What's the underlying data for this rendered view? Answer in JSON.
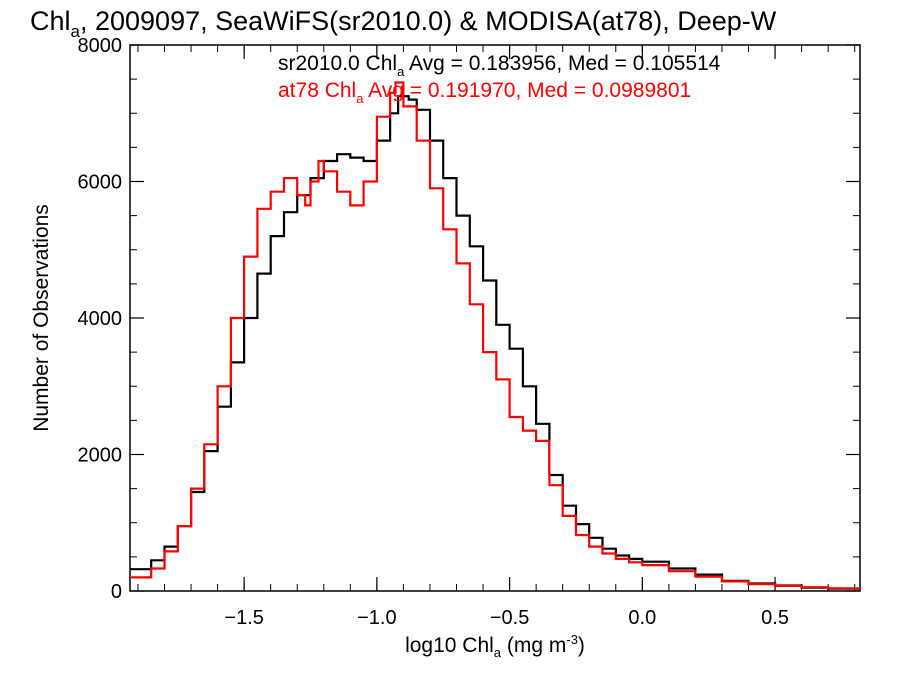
{
  "chart_data": {
    "type": "line",
    "title_parts": {
      "pre": "Chl",
      "sub": "a",
      "post": ", 2009097, SeaWiFS(sr2010.0) & MODISA(at78), Deep-W"
    },
    "xlabel_parts": {
      "pre": "log10 Chl",
      "sub": "a",
      "mid": " (mg m",
      "sup": "-3",
      "post": ")"
    },
    "ylabel": "Number of Observations",
    "xlim": [
      -1.93,
      0.82
    ],
    "ylim": [
      0,
      8000
    ],
    "xticks": [
      {
        "v": -1.5,
        "label": "−1.5"
      },
      {
        "v": -1.0,
        "label": "−1.0"
      },
      {
        "v": -0.5,
        "label": "−0.5"
      },
      {
        "v": 0.0,
        "label": "0.0"
      },
      {
        "v": 0.5,
        "label": "0.5"
      }
    ],
    "yticks": [
      {
        "v": 0,
        "label": "0"
      },
      {
        "v": 2000,
        "label": "2000"
      },
      {
        "v": 4000,
        "label": "4000"
      },
      {
        "v": 6000,
        "label": "6000"
      },
      {
        "v": 8000,
        "label": "8000"
      }
    ],
    "x_minor_step": 0.1,
    "y_minor_step": 500,
    "grid": false,
    "series": [
      {
        "name": "sr2010.0",
        "color": "#000000",
        "stat": {
          "pre": "sr2010.0 Chl",
          "sub": "a",
          "post": " Avg = 0.183956, Med = 0.105514"
        },
        "points": [
          [
            -1.93,
            320
          ],
          [
            -1.85,
            450
          ],
          [
            -1.8,
            650
          ],
          [
            -1.75,
            950
          ],
          [
            -1.7,
            1450
          ],
          [
            -1.65,
            2050
          ],
          [
            -1.6,
            2700
          ],
          [
            -1.55,
            3350
          ],
          [
            -1.5,
            4000
          ],
          [
            -1.45,
            4650
          ],
          [
            -1.4,
            5200
          ],
          [
            -1.35,
            5550
          ],
          [
            -1.3,
            5800
          ],
          [
            -1.25,
            6050
          ],
          [
            -1.2,
            6300
          ],
          [
            -1.15,
            6400
          ],
          [
            -1.1,
            6350
          ],
          [
            -1.05,
            6300
          ],
          [
            -1.0,
            6600
          ],
          [
            -0.95,
            7000
          ],
          [
            -0.92,
            7250
          ],
          [
            -0.88,
            7200
          ],
          [
            -0.85,
            7050
          ],
          [
            -0.8,
            6600
          ],
          [
            -0.75,
            6050
          ],
          [
            -0.7,
            5500
          ],
          [
            -0.65,
            5050
          ],
          [
            -0.6,
            4550
          ],
          [
            -0.55,
            3900
          ],
          [
            -0.5,
            3550
          ],
          [
            -0.45,
            3000
          ],
          [
            -0.4,
            2450
          ],
          [
            -0.35,
            1700
          ],
          [
            -0.3,
            1250
          ],
          [
            -0.25,
            980
          ],
          [
            -0.2,
            780
          ],
          [
            -0.15,
            620
          ],
          [
            -0.1,
            520
          ],
          [
            -0.05,
            470
          ],
          [
            0.0,
            430
          ],
          [
            0.1,
            330
          ],
          [
            0.2,
            240
          ],
          [
            0.3,
            150
          ],
          [
            0.4,
            110
          ],
          [
            0.5,
            80
          ],
          [
            0.6,
            50
          ],
          [
            0.7,
            35
          ],
          [
            0.82,
            25
          ]
        ]
      },
      {
        "name": "at78",
        "color": "#ff0000",
        "stat": {
          "pre": "at78 Chl",
          "sub": "a",
          "post": " Avg = 0.191970, Med = 0.0989801"
        },
        "points": [
          [
            -1.93,
            200
          ],
          [
            -1.85,
            330
          ],
          [
            -1.8,
            580
          ],
          [
            -1.75,
            950
          ],
          [
            -1.7,
            1500
          ],
          [
            -1.65,
            2150
          ],
          [
            -1.6,
            3000
          ],
          [
            -1.55,
            4000
          ],
          [
            -1.5,
            4900
          ],
          [
            -1.45,
            5600
          ],
          [
            -1.4,
            5850
          ],
          [
            -1.35,
            6050
          ],
          [
            -1.3,
            5800
          ],
          [
            -1.27,
            5650
          ],
          [
            -1.25,
            6000
          ],
          [
            -1.22,
            6300
          ],
          [
            -1.2,
            6150
          ],
          [
            -1.15,
            5850
          ],
          [
            -1.1,
            5650
          ],
          [
            -1.05,
            6000
          ],
          [
            -1.0,
            6950
          ],
          [
            -0.95,
            7300
          ],
          [
            -0.93,
            7450
          ],
          [
            -0.9,
            7100
          ],
          [
            -0.85,
            6600
          ],
          [
            -0.8,
            5900
          ],
          [
            -0.75,
            5300
          ],
          [
            -0.7,
            4800
          ],
          [
            -0.65,
            4200
          ],
          [
            -0.6,
            3500
          ],
          [
            -0.55,
            3100
          ],
          [
            -0.5,
            2550
          ],
          [
            -0.45,
            2350
          ],
          [
            -0.4,
            2200
          ],
          [
            -0.35,
            1550
          ],
          [
            -0.3,
            1100
          ],
          [
            -0.25,
            820
          ],
          [
            -0.2,
            650
          ],
          [
            -0.15,
            550
          ],
          [
            -0.1,
            470
          ],
          [
            -0.05,
            420
          ],
          [
            0.0,
            380
          ],
          [
            0.1,
            290
          ],
          [
            0.2,
            210
          ],
          [
            0.3,
            140
          ],
          [
            0.4,
            100
          ],
          [
            0.5,
            75
          ],
          [
            0.6,
            55
          ],
          [
            0.7,
            40
          ],
          [
            0.82,
            30
          ]
        ]
      }
    ]
  }
}
